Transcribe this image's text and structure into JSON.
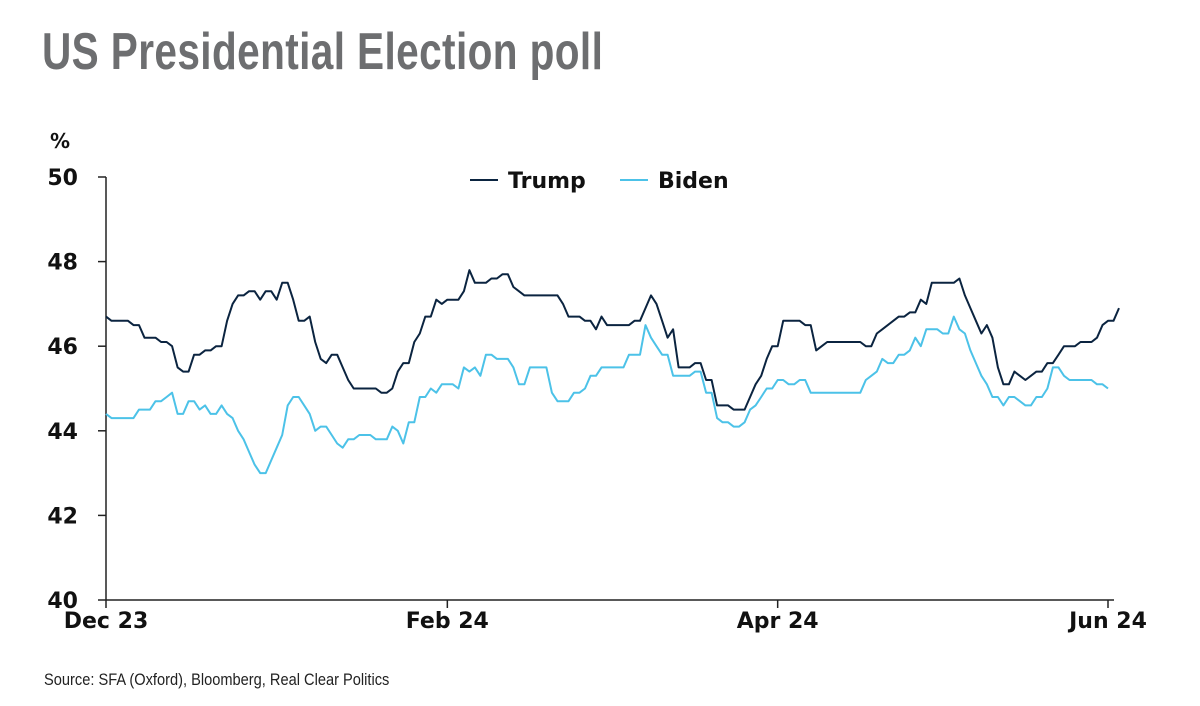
{
  "title": "US Presidential Election poll",
  "source": "Source: SFA (Oxford), Bloomberg, Real Clear Politics",
  "colors": {
    "trump": "#0b2440",
    "biden": "#4cc2e8",
    "axis": "#222222",
    "title": "#6d6e70"
  },
  "chart_data": {
    "type": "line",
    "ylabel": "%",
    "ylim": [
      40,
      50
    ],
    "yticks": [
      40,
      42,
      44,
      46,
      48,
      50
    ],
    "xlim": [
      0,
      182
    ],
    "xticks": [
      {
        "label": "Dec 23",
        "x": 0
      },
      {
        "label": "Feb 24",
        "x": 62
      },
      {
        "label": "Apr 24",
        "x": 122
      },
      {
        "label": "Jun 24",
        "x": 182
      }
    ],
    "legend": "top-center",
    "grid": false,
    "series": [
      {
        "name": "Trump",
        "color": "#0b2440",
        "points": [
          [
            0,
            46.7
          ],
          [
            1,
            46.6
          ],
          [
            4,
            46.6
          ],
          [
            5,
            46.5
          ],
          [
            6,
            46.5
          ],
          [
            7,
            46.2
          ],
          [
            9,
            46.2
          ],
          [
            10,
            46.1
          ],
          [
            11,
            46.1
          ],
          [
            12,
            46.0
          ],
          [
            13,
            45.5
          ],
          [
            14,
            45.4
          ],
          [
            15,
            45.4
          ],
          [
            16,
            45.8
          ],
          [
            17,
            45.8
          ],
          [
            18,
            45.9
          ],
          [
            19,
            45.9
          ],
          [
            20,
            46.0
          ],
          [
            21,
            46.0
          ],
          [
            22,
            46.6
          ],
          [
            23,
            47.0
          ],
          [
            24,
            47.2
          ],
          [
            25,
            47.2
          ],
          [
            26,
            47.3
          ],
          [
            27,
            47.3
          ],
          [
            28,
            47.1
          ],
          [
            29,
            47.3
          ],
          [
            30,
            47.3
          ],
          [
            31,
            47.1
          ],
          [
            32,
            47.5
          ],
          [
            33,
            47.5
          ],
          [
            34,
            47.1
          ],
          [
            35,
            46.6
          ],
          [
            36,
            46.6
          ],
          [
            37,
            46.7
          ],
          [
            38,
            46.1
          ],
          [
            39,
            45.7
          ],
          [
            40,
            45.6
          ],
          [
            41,
            45.8
          ],
          [
            42,
            45.8
          ],
          [
            43,
            45.5
          ],
          [
            44,
            45.2
          ],
          [
            45,
            45.0
          ],
          [
            48,
            45.0
          ],
          [
            49,
            45.0
          ],
          [
            50,
            44.9
          ],
          [
            51,
            44.9
          ],
          [
            52,
            45.0
          ],
          [
            53,
            45.4
          ],
          [
            54,
            45.6
          ],
          [
            55,
            45.6
          ],
          [
            56,
            46.1
          ],
          [
            57,
            46.3
          ],
          [
            58,
            46.7
          ],
          [
            59,
            46.7
          ],
          [
            60,
            47.1
          ],
          [
            61,
            47.0
          ],
          [
            62,
            47.1
          ],
          [
            64,
            47.1
          ],
          [
            65,
            47.3
          ],
          [
            66,
            47.8
          ],
          [
            67,
            47.5
          ],
          [
            69,
            47.5
          ],
          [
            70,
            47.6
          ],
          [
            71,
            47.6
          ],
          [
            72,
            47.7
          ],
          [
            73,
            47.7
          ],
          [
            74,
            47.4
          ],
          [
            75,
            47.3
          ],
          [
            76,
            47.2
          ],
          [
            82,
            47.2
          ],
          [
            83,
            47.0
          ],
          [
            84,
            46.7
          ],
          [
            86,
            46.7
          ],
          [
            87,
            46.6
          ],
          [
            88,
            46.6
          ],
          [
            89,
            46.4
          ],
          [
            90,
            46.7
          ],
          [
            91,
            46.5
          ],
          [
            95,
            46.5
          ],
          [
            96,
            46.6
          ],
          [
            97,
            46.6
          ],
          [
            98,
            46.9
          ],
          [
            99,
            47.2
          ],
          [
            100,
            47.0
          ],
          [
            101,
            46.6
          ],
          [
            102,
            46.2
          ],
          [
            103,
            46.4
          ],
          [
            104,
            45.5
          ],
          [
            106,
            45.5
          ],
          [
            107,
            45.6
          ],
          [
            108,
            45.6
          ],
          [
            109,
            45.2
          ],
          [
            110,
            45.2
          ],
          [
            111,
            44.6
          ],
          [
            113,
            44.6
          ],
          [
            114,
            44.5
          ],
          [
            116,
            44.5
          ],
          [
            117,
            44.8
          ],
          [
            118,
            45.1
          ],
          [
            119,
            45.3
          ],
          [
            120,
            45.7
          ],
          [
            121,
            46.0
          ],
          [
            122,
            46.0
          ],
          [
            123,
            46.6
          ],
          [
            126,
            46.6
          ],
          [
            127,
            46.5
          ],
          [
            128,
            46.5
          ],
          [
            129,
            45.9
          ],
          [
            130,
            46.0
          ],
          [
            131,
            46.1
          ],
          [
            137,
            46.1
          ],
          [
            138,
            46.0
          ],
          [
            139,
            46.0
          ],
          [
            140,
            46.3
          ],
          [
            141,
            46.4
          ],
          [
            142,
            46.5
          ],
          [
            143,
            46.6
          ],
          [
            144,
            46.7
          ],
          [
            145,
            46.7
          ],
          [
            146,
            46.8
          ],
          [
            147,
            46.8
          ],
          [
            148,
            47.1
          ],
          [
            149,
            47.0
          ],
          [
            150,
            47.5
          ],
          [
            154,
            47.5
          ],
          [
            155,
            47.6
          ],
          [
            156,
            47.2
          ],
          [
            157,
            46.9
          ],
          [
            158,
            46.6
          ],
          [
            159,
            46.3
          ],
          [
            160,
            46.5
          ],
          [
            161,
            46.2
          ],
          [
            162,
            45.5
          ],
          [
            163,
            45.1
          ],
          [
            164,
            45.1
          ],
          [
            165,
            45.4
          ],
          [
            166,
            45.3
          ],
          [
            167,
            45.2
          ],
          [
            168,
            45.3
          ],
          [
            169,
            45.4
          ],
          [
            170,
            45.4
          ],
          [
            171,
            45.6
          ],
          [
            172,
            45.6
          ],
          [
            173,
            45.8
          ],
          [
            174,
            46.0
          ],
          [
            176,
            46.0
          ],
          [
            177,
            46.1
          ],
          [
            179,
            46.1
          ],
          [
            180,
            46.2
          ],
          [
            181,
            46.5
          ],
          [
            182,
            46.6
          ],
          [
            183,
            46.6
          ],
          [
            184,
            46.9
          ]
        ]
      },
      {
        "name": "Biden",
        "color": "#4cc2e8",
        "points": [
          [
            0,
            44.4
          ],
          [
            1,
            44.3
          ],
          [
            5,
            44.3
          ],
          [
            6,
            44.5
          ],
          [
            8,
            44.5
          ],
          [
            9,
            44.7
          ],
          [
            10,
            44.7
          ],
          [
            11,
            44.8
          ],
          [
            12,
            44.9
          ],
          [
            13,
            44.4
          ],
          [
            14,
            44.4
          ],
          [
            15,
            44.7
          ],
          [
            16,
            44.7
          ],
          [
            17,
            44.5
          ],
          [
            18,
            44.6
          ],
          [
            19,
            44.4
          ],
          [
            20,
            44.4
          ],
          [
            21,
            44.6
          ],
          [
            22,
            44.4
          ],
          [
            23,
            44.3
          ],
          [
            24,
            44.0
          ],
          [
            25,
            43.8
          ],
          [
            26,
            43.5
          ],
          [
            27,
            43.2
          ],
          [
            28,
            43.0
          ],
          [
            29,
            43.0
          ],
          [
            30,
            43.3
          ],
          [
            31,
            43.6
          ],
          [
            32,
            43.9
          ],
          [
            33,
            44.6
          ],
          [
            34,
            44.8
          ],
          [
            35,
            44.8
          ],
          [
            36,
            44.6
          ],
          [
            37,
            44.4
          ],
          [
            38,
            44.0
          ],
          [
            39,
            44.1
          ],
          [
            40,
            44.1
          ],
          [
            41,
            43.9
          ],
          [
            42,
            43.7
          ],
          [
            43,
            43.6
          ],
          [
            44,
            43.8
          ],
          [
            45,
            43.8
          ],
          [
            46,
            43.9
          ],
          [
            48,
            43.9
          ],
          [
            49,
            43.8
          ],
          [
            51,
            43.8
          ],
          [
            52,
            44.1
          ],
          [
            53,
            44.0
          ],
          [
            54,
            43.7
          ],
          [
            55,
            44.2
          ],
          [
            56,
            44.2
          ],
          [
            57,
            44.8
          ],
          [
            58,
            44.8
          ],
          [
            59,
            45.0
          ],
          [
            60,
            44.9
          ],
          [
            61,
            45.1
          ],
          [
            63,
            45.1
          ],
          [
            64,
            45.0
          ],
          [
            65,
            45.5
          ],
          [
            66,
            45.4
          ],
          [
            67,
            45.5
          ],
          [
            68,
            45.3
          ],
          [
            69,
            45.8
          ],
          [
            70,
            45.8
          ],
          [
            71,
            45.7
          ],
          [
            73,
            45.7
          ],
          [
            74,
            45.5
          ],
          [
            75,
            45.1
          ],
          [
            76,
            45.1
          ],
          [
            77,
            45.5
          ],
          [
            80,
            45.5
          ],
          [
            81,
            44.9
          ],
          [
            82,
            44.7
          ],
          [
            84,
            44.7
          ],
          [
            85,
            44.9
          ],
          [
            86,
            44.9
          ],
          [
            87,
            45.0
          ],
          [
            88,
            45.3
          ],
          [
            89,
            45.3
          ],
          [
            90,
            45.5
          ],
          [
            94,
            45.5
          ],
          [
            95,
            45.8
          ],
          [
            97,
            45.8
          ],
          [
            98,
            46.5
          ],
          [
            99,
            46.2
          ],
          [
            100,
            46.0
          ],
          [
            101,
            45.8
          ],
          [
            102,
            45.8
          ],
          [
            103,
            45.3
          ],
          [
            106,
            45.3
          ],
          [
            107,
            45.4
          ],
          [
            108,
            45.4
          ],
          [
            109,
            44.9
          ],
          [
            110,
            44.9
          ],
          [
            111,
            44.3
          ],
          [
            112,
            44.2
          ],
          [
            113,
            44.2
          ],
          [
            114,
            44.1
          ],
          [
            115,
            44.1
          ],
          [
            116,
            44.2
          ],
          [
            117,
            44.5
          ],
          [
            118,
            44.6
          ],
          [
            119,
            44.8
          ],
          [
            120,
            45.0
          ],
          [
            121,
            45.0
          ],
          [
            122,
            45.2
          ],
          [
            123,
            45.2
          ],
          [
            124,
            45.1
          ],
          [
            125,
            45.1
          ],
          [
            126,
            45.2
          ],
          [
            127,
            45.2
          ],
          [
            128,
            44.9
          ],
          [
            137,
            44.9
          ],
          [
            138,
            45.2
          ],
          [
            139,
            45.3
          ],
          [
            140,
            45.4
          ],
          [
            141,
            45.7
          ],
          [
            142,
            45.6
          ],
          [
            143,
            45.6
          ],
          [
            144,
            45.8
          ],
          [
            145,
            45.8
          ],
          [
            146,
            45.9
          ],
          [
            147,
            46.2
          ],
          [
            148,
            46.0
          ],
          [
            149,
            46.4
          ],
          [
            151,
            46.4
          ],
          [
            152,
            46.3
          ],
          [
            153,
            46.3
          ],
          [
            154,
            46.7
          ],
          [
            155,
            46.4
          ],
          [
            156,
            46.3
          ],
          [
            157,
            45.9
          ],
          [
            158,
            45.6
          ],
          [
            159,
            45.3
          ],
          [
            160,
            45.1
          ],
          [
            161,
            44.8
          ],
          [
            162,
            44.8
          ],
          [
            163,
            44.6
          ],
          [
            164,
            44.8
          ],
          [
            165,
            44.8
          ],
          [
            166,
            44.7
          ],
          [
            167,
            44.6
          ],
          [
            168,
            44.6
          ],
          [
            169,
            44.8
          ],
          [
            170,
            44.8
          ],
          [
            171,
            45.0
          ],
          [
            172,
            45.5
          ],
          [
            173,
            45.5
          ],
          [
            174,
            45.3
          ],
          [
            175,
            45.2
          ],
          [
            179,
            45.2
          ],
          [
            180,
            45.1
          ],
          [
            181,
            45.1
          ],
          [
            182,
            45.0
          ]
        ]
      }
    ]
  }
}
